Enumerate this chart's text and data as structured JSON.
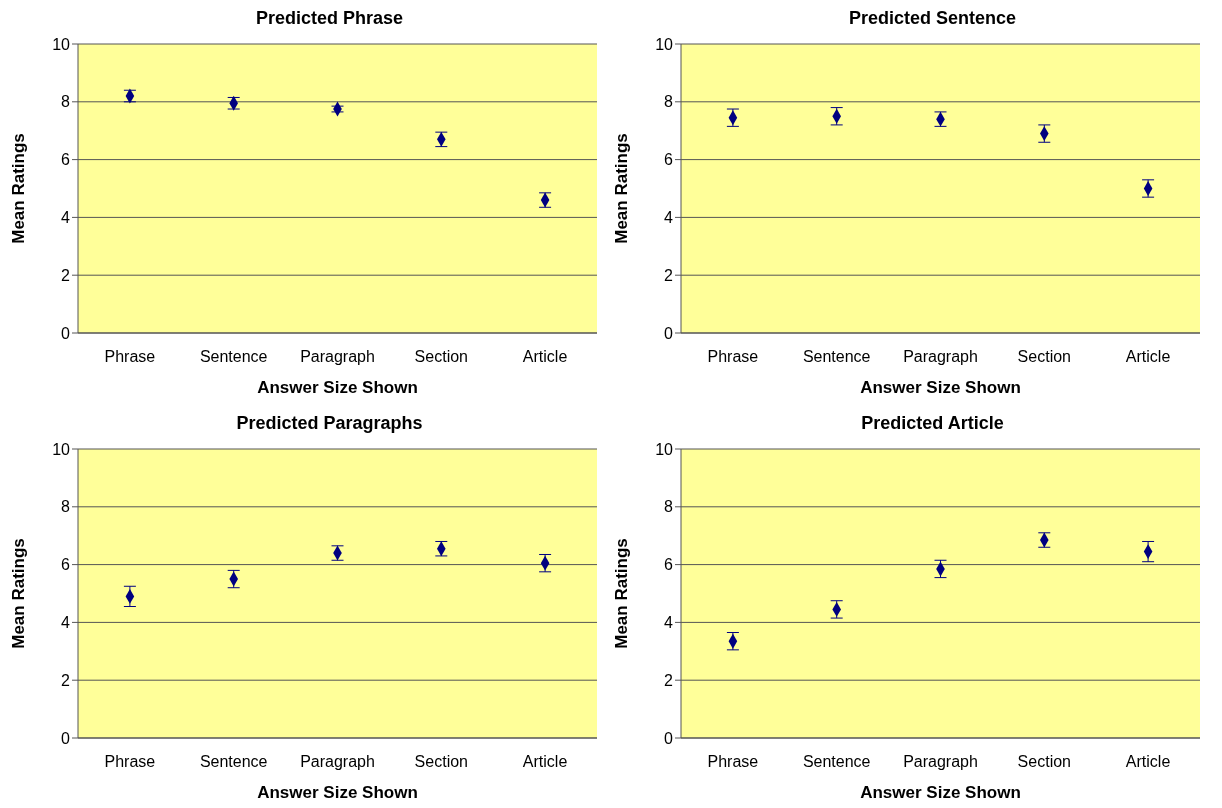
{
  "chart_data": [
    {
      "type": "scatter",
      "title": "Predicted Phrase",
      "xlabel": "Answer Size Shown",
      "ylabel": "Mean Ratings",
      "categories": [
        "Phrase",
        "Sentence",
        "Paragraph",
        "Section",
        "Article"
      ],
      "values": [
        8.2,
        7.95,
        7.75,
        6.7,
        4.6
      ],
      "errors": [
        0.2,
        0.2,
        0.1,
        0.25,
        0.25
      ],
      "color": "#000080",
      "marker": "diamond",
      "ylim": [
        0,
        10
      ],
      "yticks": [
        0,
        2,
        4,
        6,
        8,
        10
      ],
      "grid": "y",
      "legend": false
    },
    {
      "type": "scatter",
      "title": "Predicted Sentence",
      "xlabel": "Answer Size Shown",
      "ylabel": "Mean Ratings",
      "categories": [
        "Phrase",
        "Sentence",
        "Paragraph",
        "Section",
        "Article"
      ],
      "values": [
        7.45,
        7.5,
        7.4,
        6.9,
        5.0
      ],
      "errors": [
        0.3,
        0.3,
        0.25,
        0.3,
        0.3
      ],
      "color": "#000080",
      "marker": "diamond",
      "ylim": [
        0,
        10
      ],
      "yticks": [
        0,
        2,
        4,
        6,
        8,
        10
      ],
      "grid": "y",
      "legend": false
    },
    {
      "type": "scatter",
      "title": "Predicted Paragraphs",
      "xlabel": "Answer Size Shown",
      "ylabel": "Mean Ratings",
      "categories": [
        "Phrase",
        "Sentence",
        "Paragraph",
        "Section",
        "Article"
      ],
      "values": [
        4.9,
        5.5,
        6.4,
        6.55,
        6.05
      ],
      "errors": [
        0.35,
        0.3,
        0.25,
        0.25,
        0.3
      ],
      "color": "#000080",
      "marker": "diamond",
      "ylim": [
        0,
        10
      ],
      "yticks": [
        0,
        2,
        4,
        6,
        8,
        10
      ],
      "grid": "y",
      "legend": false
    },
    {
      "type": "scatter",
      "title": "Predicted Article",
      "xlabel": "Answer Size Shown",
      "ylabel": "Mean Ratings",
      "categories": [
        "Phrase",
        "Sentence",
        "Paragraph",
        "Section",
        "Article"
      ],
      "values": [
        3.35,
        4.45,
        5.85,
        6.85,
        6.45
      ],
      "errors": [
        0.3,
        0.3,
        0.3,
        0.25,
        0.35
      ],
      "color": "#000080",
      "marker": "diamond",
      "ylim": [
        0,
        10
      ],
      "yticks": [
        0,
        2,
        4,
        6,
        8,
        10
      ],
      "grid": "y",
      "legend": false
    }
  ]
}
